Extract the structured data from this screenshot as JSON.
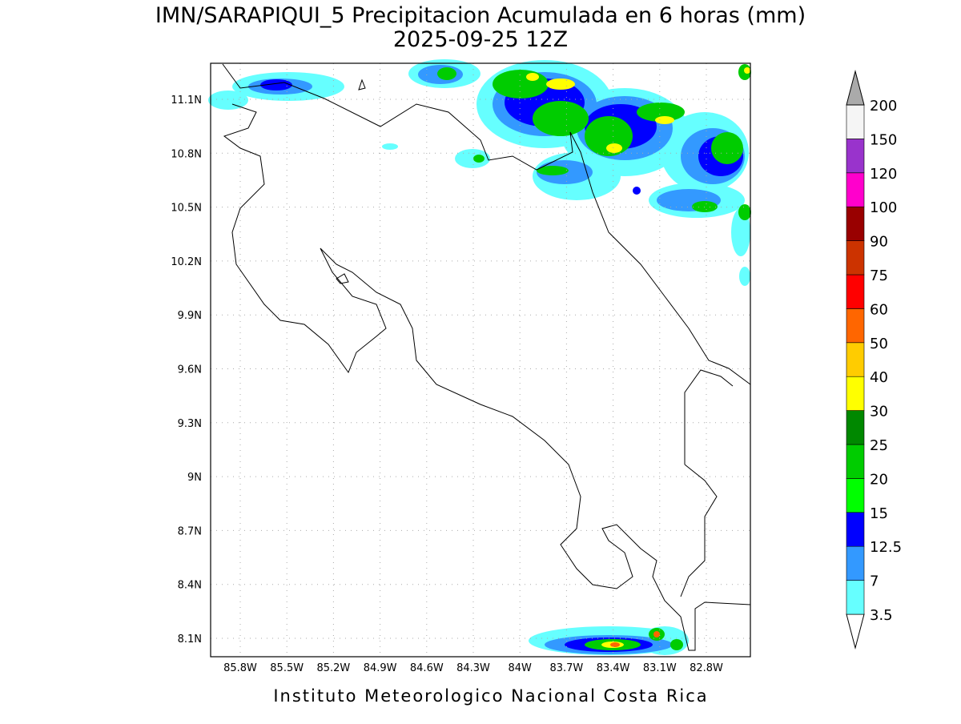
{
  "title": "IMN/SARAPIQUI_5 Precipitacion Acumulada en 6 horas (mm)",
  "subtitle": "2025-09-25 12Z",
  "map": {
    "lat_labels": [
      "11.1N",
      "10.8N",
      "10.5N",
      "10.2N",
      "9.9N",
      "9.6N",
      "9.3N",
      "9N",
      "8.7N",
      "8.4N",
      "8.1N"
    ],
    "lon_labels": [
      "85.8W",
      "85.5W",
      "85.2W",
      "84.9W",
      "84.6W",
      "84.3W",
      "84W",
      "83.7W",
      "83.4W",
      "83.1W",
      "82.8W"
    ]
  },
  "colorbar": {
    "levels": [
      "3.5",
      "7",
      "12.5",
      "15",
      "20",
      "25",
      "30",
      "40",
      "50",
      "60",
      "75",
      "90",
      "100",
      "120",
      "150",
      "200"
    ],
    "colors": [
      "#ffffff",
      "#66ffff",
      "#3399ff",
      "#0000ff",
      "#00ff00",
      "#00cc00",
      "#008800",
      "#ffff00",
      "#ffcc00",
      "#ff6600",
      "#ff0000",
      "#cc3300",
      "#990000",
      "#ff00cc",
      "#9933cc",
      "#f5f5f5",
      "#aaaaaa"
    ]
  },
  "footer": "Instituto Meteorologico Nacional Costa Rica"
}
